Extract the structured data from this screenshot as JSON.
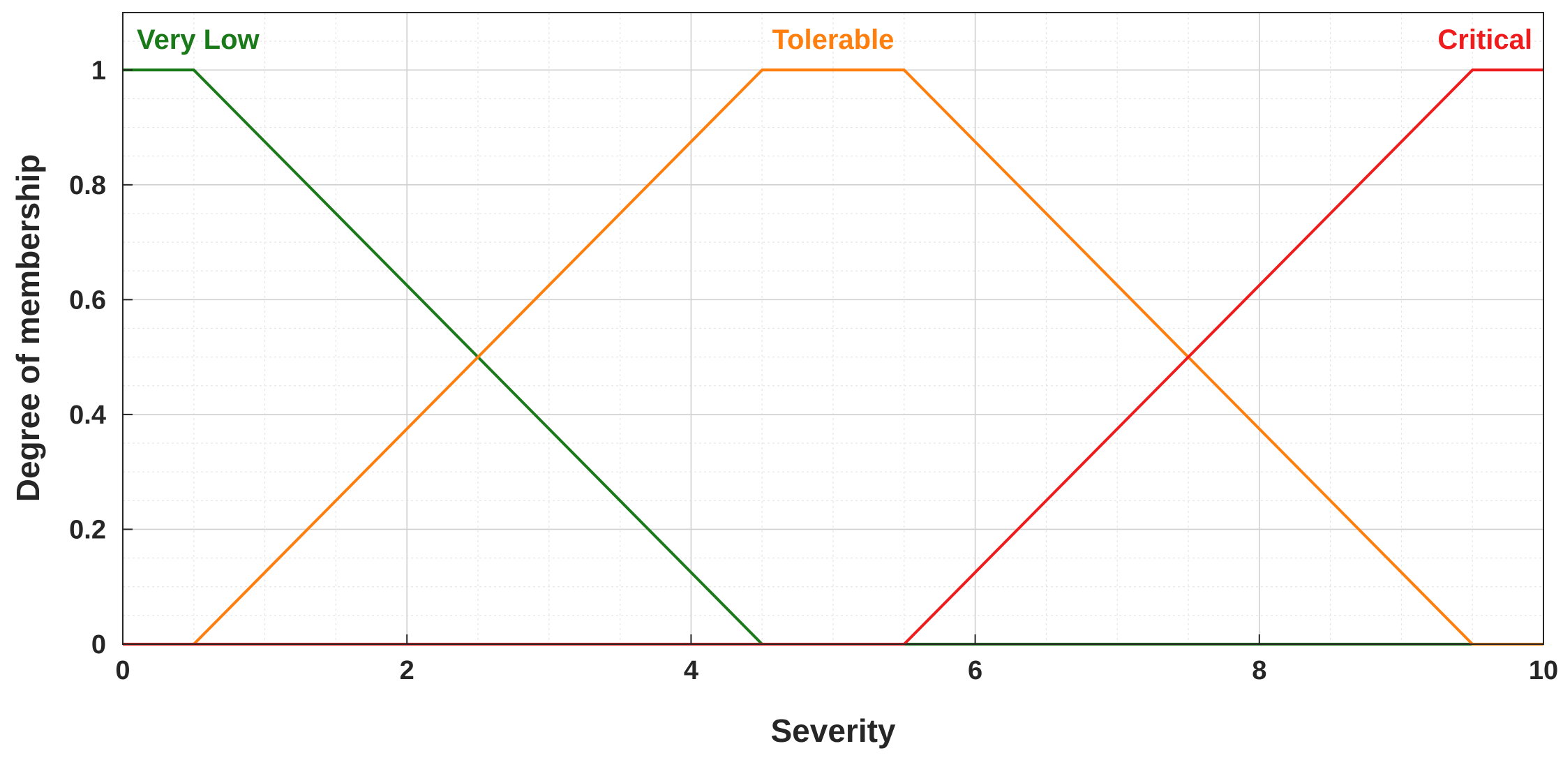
{
  "chart_data": {
    "type": "line",
    "xlabel": "Severity",
    "ylabel": "Degree of membership",
    "xlim": [
      0,
      10
    ],
    "ylim": [
      0,
      1.1
    ],
    "x_ticks": [
      0,
      2,
      4,
      6,
      8,
      10
    ],
    "y_ticks": [
      0,
      0.2,
      0.4,
      0.6,
      0.8,
      1
    ],
    "x_tick_labels": [
      "0",
      "2",
      "4",
      "6",
      "8",
      "10"
    ],
    "y_tick_labels": [
      "0",
      "0.2",
      "0.4",
      "0.6",
      "0.8",
      "1"
    ],
    "grid": true,
    "minor_grid": true,
    "series": [
      {
        "name": "Very Low",
        "color": "#1a7a1a",
        "x": [
          0,
          0.5,
          4.5,
          10
        ],
        "y": [
          1,
          1,
          0,
          0
        ]
      },
      {
        "name": "Tolerable",
        "color": "#ff7f0e",
        "x": [
          0,
          0.5,
          4.5,
          5.5,
          9.5,
          10
        ],
        "y": [
          0,
          0,
          1,
          1,
          0,
          0
        ]
      },
      {
        "name": "Critical",
        "color": "#ee1c1c",
        "x": [
          0,
          5.5,
          9.5,
          10
        ],
        "y": [
          0,
          0,
          1,
          1
        ]
      }
    ]
  }
}
